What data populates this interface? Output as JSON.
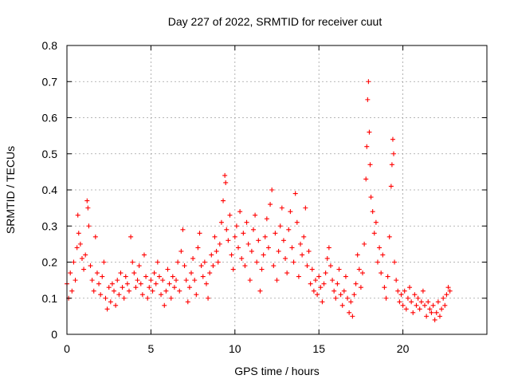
{
  "chart_data": {
    "type": "scatter",
    "title": "Day 227 of 2022, SRMTID for receiver cuut",
    "xlabel": "GPS time / hours",
    "ylabel": "SRMTID / TECUs",
    "xlim": [
      0,
      25
    ],
    "ylim": [
      0,
      0.8
    ],
    "x_ticks": [
      0,
      5,
      10,
      15,
      20
    ],
    "y_ticks": [
      0,
      0.1,
      0.2,
      0.3,
      0.4,
      0.5,
      0.6,
      0.7,
      0.8
    ],
    "x_tick_labels": [
      "0",
      "5",
      "10",
      "15",
      "20"
    ],
    "y_tick_labels": [
      "0",
      "0.1",
      "0.2",
      "0.3",
      "0.4",
      "0.5",
      "0.6",
      "0.7",
      "0.8"
    ],
    "grid": true,
    "marker": "+",
    "marker_color": "#ff0000",
    "series": [
      {
        "name": "SRMTID",
        "points": [
          [
            0.0,
            0.14
          ],
          [
            0.1,
            0.1
          ],
          [
            0.2,
            0.17
          ],
          [
            0.3,
            0.12
          ],
          [
            0.4,
            0.2
          ],
          [
            0.5,
            0.15
          ],
          [
            0.6,
            0.24
          ],
          [
            0.65,
            0.33
          ],
          [
            0.7,
            0.28
          ],
          [
            0.8,
            0.25
          ],
          [
            0.9,
            0.21
          ],
          [
            1.0,
            0.18
          ],
          [
            1.1,
            0.22
          ],
          [
            1.2,
            0.37
          ],
          [
            1.25,
            0.35
          ],
          [
            1.3,
            0.3
          ],
          [
            1.4,
            0.19
          ],
          [
            1.5,
            0.15
          ],
          [
            1.6,
            0.12
          ],
          [
            1.7,
            0.27
          ],
          [
            1.8,
            0.17
          ],
          [
            1.9,
            0.14
          ],
          [
            2.0,
            0.11
          ],
          [
            2.1,
            0.16
          ],
          [
            2.2,
            0.2
          ],
          [
            2.3,
            0.1
          ],
          [
            2.4,
            0.07
          ],
          [
            2.5,
            0.13
          ],
          [
            2.6,
            0.09
          ],
          [
            2.7,
            0.14
          ],
          [
            2.8,
            0.12
          ],
          [
            2.9,
            0.08
          ],
          [
            3.0,
            0.15
          ],
          [
            3.1,
            0.11
          ],
          [
            3.2,
            0.17
          ],
          [
            3.3,
            0.13
          ],
          [
            3.4,
            0.1
          ],
          [
            3.5,
            0.16
          ],
          [
            3.6,
            0.14
          ],
          [
            3.7,
            0.12
          ],
          [
            3.8,
            0.27
          ],
          [
            3.9,
            0.2
          ],
          [
            4.0,
            0.17
          ],
          [
            4.1,
            0.13
          ],
          [
            4.2,
            0.15
          ],
          [
            4.3,
            0.19
          ],
          [
            4.4,
            0.14
          ],
          [
            4.5,
            0.11
          ],
          [
            4.6,
            0.22
          ],
          [
            4.7,
            0.16
          ],
          [
            4.8,
            0.1
          ],
          [
            4.9,
            0.13
          ],
          [
            5.0,
            0.15
          ],
          [
            5.1,
            0.12
          ],
          [
            5.2,
            0.17
          ],
          [
            5.3,
            0.14
          ],
          [
            5.4,
            0.2
          ],
          [
            5.5,
            0.16
          ],
          [
            5.6,
            0.11
          ],
          [
            5.7,
            0.15
          ],
          [
            5.8,
            0.08
          ],
          [
            5.9,
            0.12
          ],
          [
            6.0,
            0.18
          ],
          [
            6.1,
            0.14
          ],
          [
            6.2,
            0.1
          ],
          [
            6.3,
            0.16
          ],
          [
            6.4,
            0.13
          ],
          [
            6.5,
            0.15
          ],
          [
            6.6,
            0.2
          ],
          [
            6.7,
            0.12
          ],
          [
            6.8,
            0.23
          ],
          [
            6.9,
            0.29
          ],
          [
            7.0,
            0.19
          ],
          [
            7.1,
            0.15
          ],
          [
            7.2,
            0.09
          ],
          [
            7.3,
            0.13
          ],
          [
            7.4,
            0.17
          ],
          [
            7.5,
            0.21
          ],
          [
            7.6,
            0.15
          ],
          [
            7.7,
            0.11
          ],
          [
            7.8,
            0.24
          ],
          [
            7.9,
            0.28
          ],
          [
            8.0,
            0.19
          ],
          [
            8.1,
            0.16
          ],
          [
            8.2,
            0.2
          ],
          [
            8.3,
            0.14
          ],
          [
            8.4,
            0.1
          ],
          [
            8.5,
            0.17
          ],
          [
            8.6,
            0.22
          ],
          [
            8.7,
            0.19
          ],
          [
            8.8,
            0.27
          ],
          [
            8.9,
            0.23
          ],
          [
            9.0,
            0.2
          ],
          [
            9.1,
            0.25
          ],
          [
            9.2,
            0.31
          ],
          [
            9.3,
            0.37
          ],
          [
            9.4,
            0.44
          ],
          [
            9.45,
            0.42
          ],
          [
            9.5,
            0.29
          ],
          [
            9.6,
            0.26
          ],
          [
            9.7,
            0.33
          ],
          [
            9.8,
            0.22
          ],
          [
            9.9,
            0.18
          ],
          [
            10.0,
            0.27
          ],
          [
            10.1,
            0.3
          ],
          [
            10.2,
            0.24
          ],
          [
            10.3,
            0.34
          ],
          [
            10.4,
            0.21
          ],
          [
            10.5,
            0.28
          ],
          [
            10.6,
            0.19
          ],
          [
            10.7,
            0.31
          ],
          [
            10.8,
            0.25
          ],
          [
            10.9,
            0.15
          ],
          [
            11.0,
            0.23
          ],
          [
            11.1,
            0.29
          ],
          [
            11.2,
            0.33
          ],
          [
            11.3,
            0.2
          ],
          [
            11.4,
            0.26
          ],
          [
            11.5,
            0.12
          ],
          [
            11.6,
            0.18
          ],
          [
            11.7,
            0.22
          ],
          [
            11.8,
            0.27
          ],
          [
            11.9,
            0.32
          ],
          [
            12.0,
            0.24
          ],
          [
            12.1,
            0.36
          ],
          [
            12.2,
            0.4
          ],
          [
            12.3,
            0.19
          ],
          [
            12.4,
            0.28
          ],
          [
            12.5,
            0.15
          ],
          [
            12.6,
            0.23
          ],
          [
            12.7,
            0.3
          ],
          [
            12.8,
            0.35
          ],
          [
            12.9,
            0.26
          ],
          [
            13.0,
            0.21
          ],
          [
            13.1,
            0.17
          ],
          [
            13.2,
            0.29
          ],
          [
            13.3,
            0.34
          ],
          [
            13.4,
            0.24
          ],
          [
            13.5,
            0.2
          ],
          [
            13.6,
            0.39
          ],
          [
            13.7,
            0.31
          ],
          [
            13.8,
            0.16
          ],
          [
            13.9,
            0.25
          ],
          [
            14.0,
            0.22
          ],
          [
            14.1,
            0.27
          ],
          [
            14.2,
            0.35
          ],
          [
            14.3,
            0.19
          ],
          [
            14.4,
            0.23
          ],
          [
            14.5,
            0.14
          ],
          [
            14.6,
            0.18
          ],
          [
            14.7,
            0.12
          ],
          [
            14.8,
            0.15
          ],
          [
            14.9,
            0.11
          ],
          [
            15.0,
            0.16
          ],
          [
            15.1,
            0.13
          ],
          [
            15.2,
            0.09
          ],
          [
            15.3,
            0.14
          ],
          [
            15.4,
            0.17
          ],
          [
            15.5,
            0.21
          ],
          [
            15.6,
            0.24
          ],
          [
            15.7,
            0.19
          ],
          [
            15.8,
            0.15
          ],
          [
            15.9,
            0.12
          ],
          [
            16.0,
            0.1
          ],
          [
            16.1,
            0.14
          ],
          [
            16.2,
            0.18
          ],
          [
            16.3,
            0.11
          ],
          [
            16.4,
            0.08
          ],
          [
            16.5,
            0.12
          ],
          [
            16.6,
            0.16
          ],
          [
            16.7,
            0.1
          ],
          [
            16.8,
            0.06
          ],
          [
            16.9,
            0.09
          ],
          [
            17.0,
            0.05
          ],
          [
            17.1,
            0.11
          ],
          [
            17.2,
            0.14
          ],
          [
            17.3,
            0.22
          ],
          [
            17.4,
            0.18
          ],
          [
            17.5,
            0.13
          ],
          [
            17.6,
            0.17
          ],
          [
            17.7,
            0.25
          ],
          [
            17.8,
            0.43
          ],
          [
            17.85,
            0.52
          ],
          [
            17.9,
            0.65
          ],
          [
            17.95,
            0.7
          ],
          [
            18.0,
            0.56
          ],
          [
            18.05,
            0.47
          ],
          [
            18.1,
            0.38
          ],
          [
            18.2,
            0.34
          ],
          [
            18.3,
            0.28
          ],
          [
            18.4,
            0.31
          ],
          [
            18.5,
            0.2
          ],
          [
            18.6,
            0.24
          ],
          [
            18.7,
            0.17
          ],
          [
            18.8,
            0.22
          ],
          [
            18.9,
            0.13
          ],
          [
            19.0,
            0.1
          ],
          [
            19.1,
            0.16
          ],
          [
            19.2,
            0.27
          ],
          [
            19.3,
            0.41
          ],
          [
            19.35,
            0.47
          ],
          [
            19.4,
            0.54
          ],
          [
            19.45,
            0.5
          ],
          [
            19.5,
            0.2
          ],
          [
            19.6,
            0.15
          ],
          [
            19.7,
            0.12
          ],
          [
            19.8,
            0.09
          ],
          [
            19.9,
            0.11
          ],
          [
            20.0,
            0.08
          ],
          [
            20.1,
            0.12
          ],
          [
            20.2,
            0.07
          ],
          [
            20.3,
            0.1
          ],
          [
            20.4,
            0.13
          ],
          [
            20.5,
            0.09
          ],
          [
            20.6,
            0.06
          ],
          [
            20.7,
            0.11
          ],
          [
            20.8,
            0.08
          ],
          [
            20.9,
            0.1
          ],
          [
            21.0,
            0.07
          ],
          [
            21.1,
            0.09
          ],
          [
            21.2,
            0.12
          ],
          [
            21.3,
            0.08
          ],
          [
            21.4,
            0.05
          ],
          [
            21.5,
            0.09
          ],
          [
            21.6,
            0.07
          ],
          [
            21.7,
            0.06
          ],
          [
            21.8,
            0.08
          ],
          [
            21.9,
            0.04
          ],
          [
            22.0,
            0.06
          ],
          [
            22.1,
            0.09
          ],
          [
            22.2,
            0.05
          ],
          [
            22.3,
            0.07
          ],
          [
            22.4,
            0.1
          ],
          [
            22.5,
            0.08
          ],
          [
            22.6,
            0.11
          ],
          [
            22.7,
            0.13
          ],
          [
            22.8,
            0.12
          ]
        ]
      }
    ]
  }
}
